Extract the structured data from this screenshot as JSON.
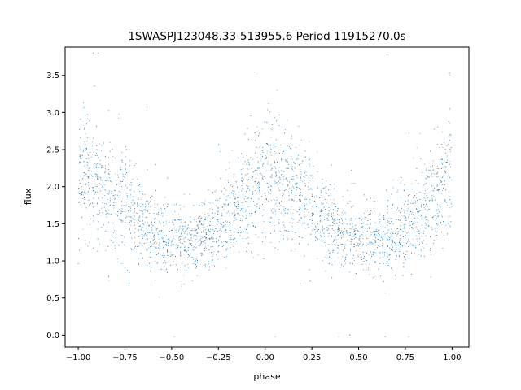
{
  "chart_data": {
    "type": "scatter",
    "title": "1SWASPJ123048.33-513955.6 Period 11915270.0s",
    "xlabel": "phase",
    "ylabel": "flux",
    "xlim": [
      -1.07,
      1.09
    ],
    "ylim": [
      -0.16,
      3.88
    ],
    "x_ticks": [
      -1.0,
      -0.75,
      -0.5,
      -0.25,
      0.0,
      0.25,
      0.5,
      0.75,
      1.0
    ],
    "x_tick_labels": [
      "−1.00",
      "−0.75",
      "−0.50",
      "−0.25",
      "0.00",
      "0.25",
      "0.50",
      "0.75",
      "1.00"
    ],
    "y_ticks": [
      0.0,
      0.5,
      1.0,
      1.5,
      2.0,
      2.5,
      3.0,
      3.5
    ],
    "y_tick_labels": [
      "0.0",
      "0.5",
      "1.0",
      "1.5",
      "2.0",
      "2.5",
      "3.0",
      "3.5"
    ],
    "grid": false,
    "point_color": "#1f77b4",
    "series": [
      {
        "description_period": 1.0,
        "phase_range": [
          -1.0,
          1.0
        ],
        "profile": [
          {
            "x": -1.0,
            "y": 2.2
          },
          {
            "x": -0.9,
            "y": 2.0
          },
          {
            "x": -0.8,
            "y": 1.85
          },
          {
            "x": -0.7,
            "y": 1.6
          },
          {
            "x": -0.6,
            "y": 1.4
          },
          {
            "x": -0.5,
            "y": 1.3
          },
          {
            "x": -0.4,
            "y": 1.3
          },
          {
            "x": -0.3,
            "y": 1.35
          },
          {
            "x": -0.2,
            "y": 1.55
          },
          {
            "x": -0.1,
            "y": 1.85
          },
          {
            "x": 0.0,
            "y": 2.25
          },
          {
            "x": 0.1,
            "y": 2.0
          },
          {
            "x": 0.2,
            "y": 1.85
          },
          {
            "x": 0.3,
            "y": 1.6
          },
          {
            "x": 0.4,
            "y": 1.4
          },
          {
            "x": 0.5,
            "y": 1.3
          },
          {
            "x": 0.6,
            "y": 1.3
          },
          {
            "x": 0.7,
            "y": 1.35
          },
          {
            "x": 0.8,
            "y": 1.55
          },
          {
            "x": 0.9,
            "y": 1.85
          },
          {
            "x": 1.0,
            "y": 2.25
          }
        ]
      }
    ]
  }
}
